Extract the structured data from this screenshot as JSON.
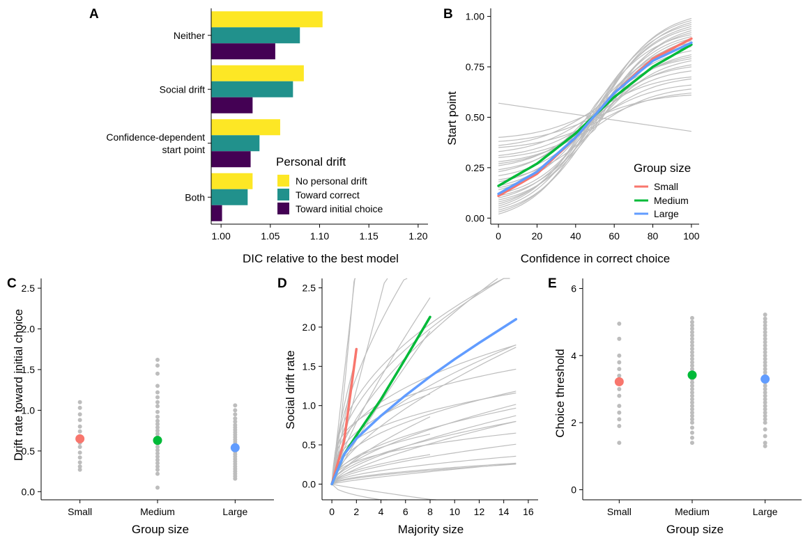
{
  "colors": {
    "no_personal_drift": "#fde725",
    "toward_correct": "#21918c",
    "toward_initial": "#440154",
    "small": "#f8766d",
    "medium": "#00ba38",
    "large": "#619cff",
    "grey": "#bdbdbd",
    "axis": "#000000"
  },
  "panels": {
    "A": {
      "label": "A"
    },
    "B": {
      "label": "B"
    },
    "C": {
      "label": "C"
    },
    "D": {
      "label": "D"
    },
    "E": {
      "label": "E"
    }
  },
  "chart_data": [
    {
      "panel": "A",
      "type": "bar",
      "orientation": "horizontal",
      "categories": [
        "Neither",
        "Social drift",
        "Confidence-dependent\nstart point",
        "Both"
      ],
      "series": [
        {
          "name": "No personal drift",
          "values": [
            1.103,
            1.084,
            1.06,
            1.032
          ]
        },
        {
          "name": "Toward correct",
          "values": [
            1.08,
            1.073,
            1.039,
            1.027
          ]
        },
        {
          "name": "Toward initial choice",
          "values": [
            1.055,
            1.032,
            1.03,
            1.001
          ]
        }
      ],
      "xlabel": "DIC relative to the best model",
      "xlim": [
        0.99,
        1.21
      ],
      "xticks": [
        1.0,
        1.05,
        1.1,
        1.15,
        1.2
      ],
      "xtick_labels": [
        "1.00",
        "1.05",
        "1.10",
        "1.15",
        "1.20"
      ],
      "legend_title": "Personal drift",
      "legend_position": "bottom-right"
    },
    {
      "panel": "B",
      "type": "line",
      "xlabel": "Confidence in correct choice",
      "ylabel": "Start point",
      "xlim": [
        -4,
        104
      ],
      "ylim": [
        -0.03,
        1.04
      ],
      "xticks": [
        0,
        20,
        40,
        60,
        80,
        100
      ],
      "xtick_labels": [
        "0",
        "20",
        "40",
        "60",
        "80",
        "100"
      ],
      "yticks": [
        0,
        0.25,
        0.5,
        0.75,
        1.0
      ],
      "ytick_labels": [
        "0.00",
        "0.25",
        "0.50",
        "0.75",
        "1.00"
      ],
      "series": [
        {
          "name": "Small",
          "x": [
            0,
            20,
            40,
            50,
            60,
            80,
            100
          ],
          "y": [
            0.11,
            0.22,
            0.4,
            0.51,
            0.62,
            0.79,
            0.89
          ]
        },
        {
          "name": "Medium",
          "x": [
            0,
            20,
            40,
            50,
            60,
            80,
            100
          ],
          "y": [
            0.16,
            0.27,
            0.42,
            0.51,
            0.6,
            0.75,
            0.86
          ]
        },
        {
          "name": "Large",
          "x": [
            0,
            20,
            40,
            50,
            60,
            80,
            100
          ],
          "y": [
            0.12,
            0.23,
            0.4,
            0.51,
            0.62,
            0.78,
            0.87
          ]
        }
      ],
      "individual_curves": [
        {
          "x": [
            0,
            100
          ],
          "y": [
            0.57,
            0.43
          ]
        },
        {
          "x": [
            0,
            50,
            100
          ],
          "y": [
            0.03,
            0.5,
            0.97
          ]
        },
        {
          "x": [
            0,
            50,
            100
          ],
          "y": [
            0.05,
            0.52,
            0.95
          ]
        },
        {
          "x": [
            0,
            50,
            100
          ],
          "y": [
            0.08,
            0.48,
            0.92
          ]
        },
        {
          "x": [
            0,
            50,
            100
          ],
          "y": [
            0.1,
            0.5,
            0.9
          ]
        },
        {
          "x": [
            0,
            50,
            100
          ],
          "y": [
            0.12,
            0.49,
            0.86
          ]
        },
        {
          "x": [
            0,
            50,
            100
          ],
          "y": [
            0.15,
            0.51,
            0.83
          ]
        },
        {
          "x": [
            0,
            50,
            100
          ],
          "y": [
            0.18,
            0.5,
            0.8
          ]
        },
        {
          "x": [
            0,
            50,
            100
          ],
          "y": [
            0.21,
            0.49,
            0.76
          ]
        },
        {
          "x": [
            0,
            50,
            100
          ],
          "y": [
            0.24,
            0.5,
            0.73
          ]
        },
        {
          "x": [
            0,
            50,
            100
          ],
          "y": [
            0.27,
            0.48,
            0.69
          ]
        },
        {
          "x": [
            0,
            50,
            100
          ],
          "y": [
            0.31,
            0.49,
            0.66
          ]
        },
        {
          "x": [
            0,
            50,
            100
          ],
          "y": [
            0.35,
            0.47,
            0.62
          ]
        },
        {
          "x": [
            0,
            50,
            100
          ],
          "y": [
            0.38,
            0.5,
            0.61
          ]
        },
        {
          "x": [
            0,
            50,
            100
          ],
          "y": [
            0.4,
            0.53,
            0.7
          ]
        },
        {
          "x": [
            0,
            50,
            100
          ],
          "y": [
            0.06,
            0.55,
            0.96
          ]
        },
        {
          "x": [
            0,
            50,
            100
          ],
          "y": [
            0.09,
            0.45,
            0.93
          ]
        },
        {
          "x": [
            0,
            50,
            100
          ],
          "y": [
            0.14,
            0.56,
            0.91
          ]
        },
        {
          "x": [
            0,
            50,
            100
          ],
          "y": [
            0.19,
            0.44,
            0.88
          ]
        },
        {
          "x": [
            0,
            50,
            100
          ],
          "y": [
            0.23,
            0.54,
            0.85
          ]
        },
        {
          "x": [
            0,
            50,
            100
          ],
          "y": [
            0.28,
            0.46,
            0.78
          ]
        },
        {
          "x": [
            0,
            50,
            100
          ],
          "y": [
            0.33,
            0.52,
            0.75
          ]
        },
        {
          "x": [
            0,
            50,
            100
          ],
          "y": [
            0.04,
            0.47,
            0.89
          ]
        },
        {
          "x": [
            0,
            50,
            100
          ],
          "y": [
            0.07,
            0.53,
            0.98
          ]
        },
        {
          "x": [
            0,
            50,
            100
          ],
          "y": [
            0.11,
            0.46,
            0.81
          ]
        },
        {
          "x": [
            0,
            50,
            100
          ],
          "y": [
            0.16,
            0.53,
            0.94
          ]
        },
        {
          "x": [
            0,
            50,
            100
          ],
          "y": [
            0.26,
            0.51,
            0.87
          ]
        },
        {
          "x": [
            0,
            50,
            100
          ],
          "y": [
            0.3,
            0.45,
            0.64
          ]
        },
        {
          "x": [
            0,
            50,
            100
          ],
          "y": [
            0.36,
            0.54,
            0.79
          ]
        },
        {
          "x": [
            0,
            50,
            100
          ],
          "y": [
            0.02,
            0.51,
            0.99
          ]
        }
      ],
      "legend_title": "Group size",
      "legend_position": "bottom-right"
    },
    {
      "panel": "C",
      "type": "scatter",
      "categories": [
        "Small",
        "Medium",
        "Large"
      ],
      "xlabel": "Group size",
      "ylabel": "Drift rate toward initial choice",
      "ylim": [
        -0.1,
        2.62
      ],
      "yticks": [
        0,
        0.5,
        1.0,
        1.5,
        2.0,
        2.5
      ],
      "ytick_labels": [
        "0.0",
        "0.5",
        "1.0",
        "1.5",
        "2.0",
        "2.5"
      ],
      "means": [
        0.65,
        0.63,
        0.54
      ],
      "points": [
        [
          1.1,
          1.03,
          0.95,
          0.88,
          0.8,
          0.74,
          0.68,
          0.6,
          0.55,
          0.48,
          0.42,
          0.36,
          0.31,
          0.27
        ],
        [
          1.62,
          1.55,
          1.45,
          1.3,
          1.22,
          1.16,
          1.1,
          1.05,
          0.98,
          0.92,
          0.87,
          0.83,
          0.79,
          0.75,
          0.71,
          0.67,
          0.63,
          0.59,
          0.55,
          0.51,
          0.47,
          0.43,
          0.39,
          0.35,
          0.31,
          0.27,
          0.22,
          0.05
        ],
        [
          1.06,
          1.0,
          0.95,
          0.9,
          0.86,
          0.82,
          0.79,
          0.76,
          0.73,
          0.7,
          0.67,
          0.64,
          0.61,
          0.58,
          0.55,
          0.52,
          0.49,
          0.46,
          0.43,
          0.4,
          0.37,
          0.34,
          0.31,
          0.28,
          0.25,
          0.22,
          0.19,
          0.16
        ]
      ]
    },
    {
      "panel": "D",
      "type": "line",
      "xlabel": "Majority size",
      "ylabel": "Social drift rate",
      "xlim": [
        -0.8,
        16.8
      ],
      "ylim": [
        -0.2,
        2.62
      ],
      "xticks": [
        0,
        2,
        4,
        6,
        8,
        10,
        12,
        14,
        16
      ],
      "xtick_labels": [
        "0",
        "2",
        "4",
        "6",
        "8",
        "10",
        "12",
        "14",
        "16"
      ],
      "yticks": [
        0,
        0.5,
        1.0,
        1.5,
        2.0,
        2.5
      ],
      "ytick_labels": [
        "0.0",
        "0.5",
        "1.0",
        "1.5",
        "2.0",
        "2.5"
      ],
      "series": [
        {
          "name": "Small",
          "x": [
            0,
            1,
            2
          ],
          "y": [
            0,
            0.55,
            1.72
          ]
        },
        {
          "name": "Medium",
          "x": [
            0,
            1,
            2,
            4,
            6,
            8
          ],
          "y": [
            0,
            0.38,
            0.62,
            1.08,
            1.6,
            2.13
          ]
        },
        {
          "name": "Large",
          "x": [
            0,
            1,
            2,
            4,
            6,
            8,
            10,
            12,
            15
          ],
          "y": [
            0,
            0.38,
            0.58,
            0.87,
            1.13,
            1.37,
            1.59,
            1.8,
            2.1
          ]
        }
      ],
      "individual_curves": [
        {
          "xmax": 2,
          "k": 1.2,
          "p": 1.3
        },
        {
          "xmax": 2,
          "k": 0.8,
          "p": 1.1
        },
        {
          "xmax": 2,
          "k": 1.0,
          "p": 0.7
        },
        {
          "xmax": 2,
          "k": 1.4,
          "p": 1.0
        },
        {
          "xmax": 8,
          "k": 0.6,
          "p": 1.0
        },
        {
          "xmax": 8,
          "k": 0.45,
          "p": 0.8
        },
        {
          "xmax": 8,
          "k": 0.3,
          "p": 0.9
        },
        {
          "xmax": 8,
          "k": 0.2,
          "p": 0.7
        },
        {
          "xmax": 8,
          "k": 0.12,
          "p": 0.55
        },
        {
          "xmax": 8,
          "k": 0.9,
          "p": 0.6
        },
        {
          "xmax": 8,
          "k": 0.5,
          "p": 0.4
        },
        {
          "xmax": 8,
          "k": 0.25,
          "p": 0.45
        },
        {
          "xmax": 15,
          "k": 0.55,
          "p": 0.6
        },
        {
          "xmax": 15,
          "k": 0.4,
          "p": 0.55
        },
        {
          "xmax": 15,
          "k": 0.3,
          "p": 0.65
        },
        {
          "xmax": 15,
          "k": 0.35,
          "p": 0.45
        },
        {
          "xmax": 15,
          "k": 0.25,
          "p": 0.5
        },
        {
          "xmax": 15,
          "k": 0.2,
          "p": 0.6
        },
        {
          "xmax": 15,
          "k": 0.18,
          "p": 0.55
        },
        {
          "xmax": 15,
          "k": 0.15,
          "p": 0.65
        },
        {
          "xmax": 15,
          "k": 0.22,
          "p": 0.4
        },
        {
          "xmax": 15,
          "k": 0.12,
          "p": 0.7
        },
        {
          "xmax": 15,
          "k": 0.1,
          "p": 0.6
        },
        {
          "xmax": 15,
          "k": 0.08,
          "p": 0.55
        },
        {
          "xmax": 15,
          "k": 0.45,
          "p": 0.35
        },
        {
          "xmax": 15,
          "k": 0.6,
          "p": 0.4
        },
        {
          "xmax": 15,
          "k": 0.7,
          "p": 0.5
        },
        {
          "xmax": 15,
          "k": 0.8,
          "p": 0.45
        },
        {
          "xmax": 15,
          "k": 0.65,
          "p": 0.3
        },
        {
          "xmax": 15,
          "k": 0.05,
          "p": 0.6
        },
        {
          "xmax": 15,
          "k": 0.03,
          "p": 0.8
        },
        {
          "xmax": 15,
          "k": -0.1,
          "p": 0.5
        },
        {
          "xmax": 15,
          "k": -0.03,
          "p": 0.9
        },
        {
          "xmax": 15,
          "k": 0.06,
          "p": 0.55
        }
      ]
    },
    {
      "panel": "E",
      "type": "scatter",
      "categories": [
        "Small",
        "Medium",
        "Large"
      ],
      "xlabel": "Group size",
      "ylabel": "Choice threshold",
      "ylim": [
        -0.3,
        6.3
      ],
      "yticks": [
        0,
        2,
        4,
        6
      ],
      "ytick_labels": [
        "0",
        "2",
        "4",
        "6"
      ],
      "means": [
        3.22,
        3.42,
        3.3
      ],
      "points": [
        [
          4.95,
          4.5,
          4.0,
          3.8,
          3.6,
          3.4,
          3.2,
          3.0,
          2.8,
          2.5,
          2.3,
          2.1,
          1.9,
          1.4
        ],
        [
          5.12,
          5.0,
          4.9,
          4.8,
          4.7,
          4.6,
          4.5,
          4.4,
          4.3,
          4.2,
          4.1,
          4.0,
          3.9,
          3.8,
          3.7,
          3.6,
          3.5,
          3.3,
          3.2,
          3.1,
          3.0,
          2.9,
          2.8,
          2.7,
          2.6,
          2.5,
          2.4,
          2.3,
          2.2,
          2.1,
          2.0,
          1.85,
          1.7,
          1.55,
          1.4
        ],
        [
          5.22,
          5.1,
          5.0,
          4.9,
          4.8,
          4.7,
          4.6,
          4.5,
          4.4,
          4.3,
          4.2,
          4.1,
          4.0,
          3.9,
          3.8,
          3.7,
          3.6,
          3.5,
          3.4,
          3.2,
          3.1,
          3.0,
          2.9,
          2.8,
          2.7,
          2.6,
          2.5,
          2.4,
          2.3,
          2.2,
          2.1,
          2.0,
          1.8,
          1.6,
          1.4,
          1.3
        ]
      ]
    }
  ]
}
